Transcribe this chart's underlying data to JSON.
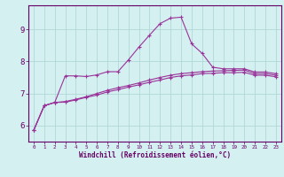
{
  "x": [
    0,
    1,
    2,
    3,
    4,
    5,
    6,
    7,
    8,
    9,
    10,
    11,
    12,
    13,
    14,
    15,
    16,
    17,
    18,
    19,
    20,
    21,
    22,
    23
  ],
  "line1": [
    5.85,
    6.62,
    6.72,
    7.55,
    7.55,
    7.53,
    7.58,
    7.68,
    7.68,
    8.05,
    8.45,
    8.82,
    9.18,
    9.35,
    9.38,
    8.55,
    8.25,
    7.82,
    7.77,
    7.77,
    7.77,
    7.67,
    7.67,
    7.62
  ],
  "line2": [
    5.85,
    6.62,
    6.72,
    6.75,
    6.82,
    6.9,
    7.0,
    7.1,
    7.18,
    7.25,
    7.33,
    7.42,
    7.5,
    7.57,
    7.62,
    7.65,
    7.68,
    7.7,
    7.71,
    7.72,
    7.73,
    7.62,
    7.62,
    7.57
  ],
  "line3": [
    5.85,
    6.62,
    6.72,
    6.73,
    6.8,
    6.88,
    6.95,
    7.05,
    7.12,
    7.2,
    7.27,
    7.35,
    7.42,
    7.5,
    7.55,
    7.58,
    7.62,
    7.63,
    7.65,
    7.65,
    7.66,
    7.57,
    7.57,
    7.52
  ],
  "line_color": "#993399",
  "bg_color": "#d4f0f0",
  "grid_color": "#b0d8d8",
  "axis_color": "#660066",
  "tick_color": "#660066",
  "xlabel": "Windchill (Refroidissement éolien,°C)",
  "ylim": [
    5.5,
    9.75
  ],
  "xlim": [
    -0.5,
    23.5
  ],
  "yticks": [
    6,
    7,
    8,
    9
  ],
  "xticks": [
    0,
    1,
    2,
    3,
    4,
    5,
    6,
    7,
    8,
    9,
    10,
    11,
    12,
    13,
    14,
    15,
    16,
    17,
    18,
    19,
    20,
    21,
    22,
    23
  ]
}
